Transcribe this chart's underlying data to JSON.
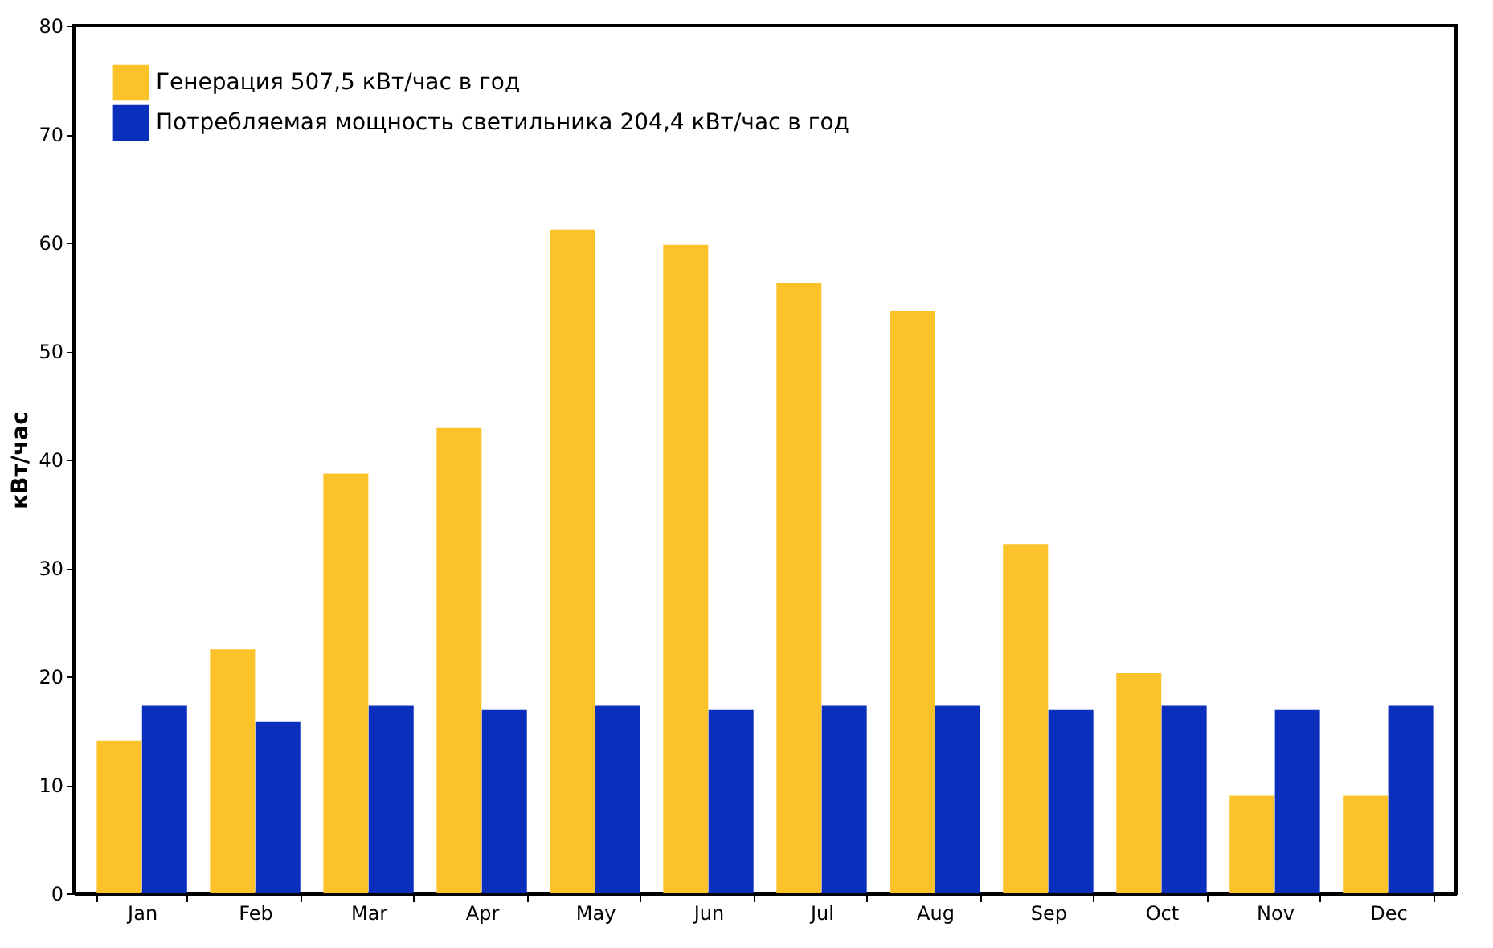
{
  "chart_data": {
    "type": "bar",
    "ylabel": "кВт/час",
    "categories": [
      "Jan",
      "Feb",
      "Mar",
      "Apr",
      "May",
      "Jun",
      "Jul",
      "Aug",
      "Sep",
      "Oct",
      "Nov",
      "Dec"
    ],
    "series": [
      {
        "name": "Генерация 507,5 кВт/час в год",
        "color": "#fcc22a",
        "values": [
          14.1,
          22.5,
          38.7,
          42.9,
          61.2,
          59.8,
          56.3,
          53.7,
          32.2,
          20.3,
          9.0,
          9.0
        ]
      },
      {
        "name": "Потребляемая мощность светильника 204,4 кВт/час в год",
        "color": "#0a2fbd",
        "values": [
          17.3,
          15.8,
          17.3,
          16.9,
          17.3,
          16.9,
          17.3,
          17.3,
          16.9,
          17.3,
          16.9,
          17.3
        ]
      }
    ],
    "ylim": [
      0,
      80
    ],
    "yticks": [
      0,
      10,
      20,
      30,
      40,
      50,
      60,
      70,
      80
    ],
    "grid": false,
    "legend": "top left"
  }
}
